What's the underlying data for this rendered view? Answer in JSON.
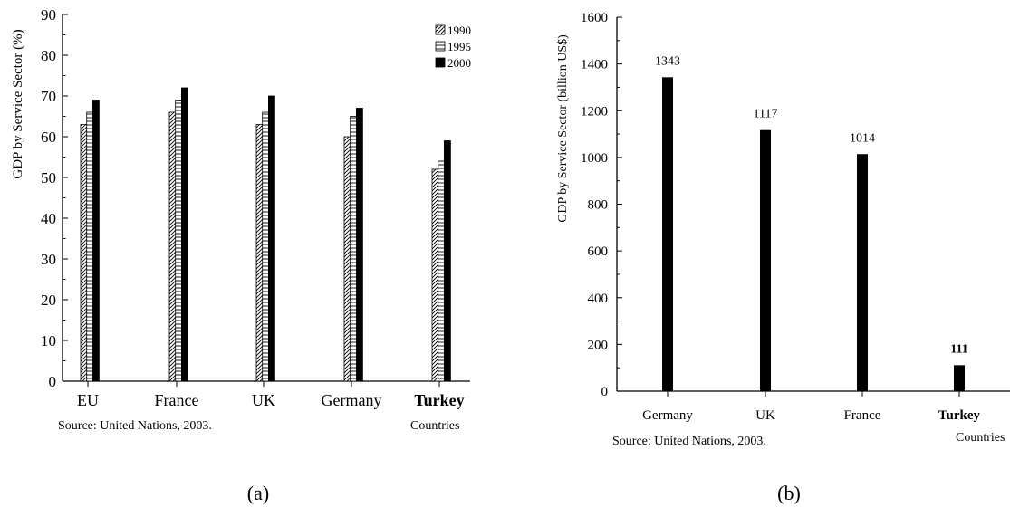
{
  "chart_data": [
    {
      "type": "bar",
      "ylabel": "GDP by Service Sector (%)",
      "xlabel": "Countries",
      "source": "Source: United Nations, 2003.",
      "panel_label": "(a)",
      "categories": [
        "EU",
        "France",
        "UK",
        "Germany",
        "Turkey"
      ],
      "bold_categories": [
        "Turkey"
      ],
      "yticks": [
        "0",
        "10",
        "20",
        "30",
        "40",
        "50",
        "60",
        "70",
        "80",
        "90"
      ],
      "ylim": [
        0,
        90
      ],
      "legend_position": "top-right",
      "series": [
        {
          "name": "1990",
          "values": [
            63,
            66,
            63,
            60,
            52
          ],
          "pattern": "diagonal-hatch"
        },
        {
          "name": "1995",
          "values": [
            66,
            69,
            66,
            65,
            54
          ],
          "pattern": "horizontal-lines"
        },
        {
          "name": "2000",
          "values": [
            69,
            72,
            70,
            67,
            59
          ],
          "pattern": "solid-black"
        }
      ]
    },
    {
      "type": "bar",
      "ylabel": "GDP by Service Sector (billion US$)",
      "xlabel": "Countries",
      "source": "Source: United Nations, 2003.",
      "panel_label": "(b)",
      "categories": [
        "Germany",
        "UK",
        "France",
        "Turkey"
      ],
      "bold_categories": [
        "Turkey"
      ],
      "yticks": [
        "0",
        "200",
        "400",
        "600",
        "800",
        "1000",
        "1200",
        "1400",
        "1600"
      ],
      "ylim": [
        0,
        1600
      ],
      "values": [
        1343,
        1117,
        1014,
        111
      ],
      "data_labels": [
        "1343",
        "1117",
        "1014",
        "111"
      ]
    }
  ]
}
